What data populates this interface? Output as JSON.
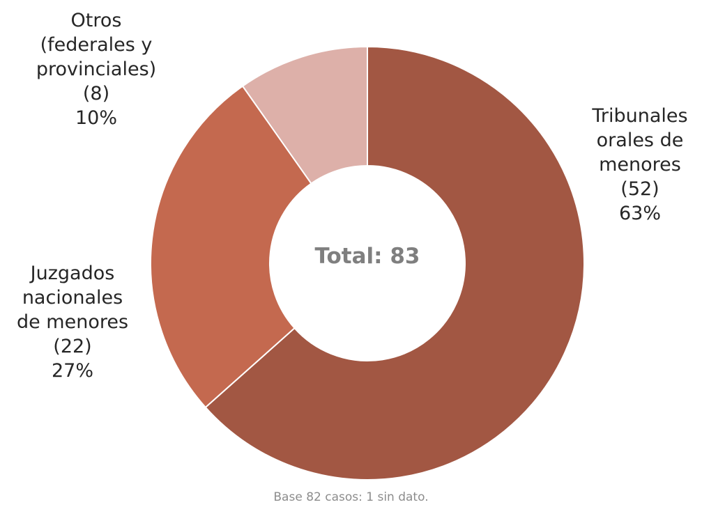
{
  "chart_data": {
    "type": "pie",
    "variant": "donut",
    "center_label": "Total: 83",
    "slices": [
      {
        "label_lines": [
          "Tribunales",
          "orales de",
          "menores"
        ],
        "count_text": "(52)",
        "percent_text": "63%",
        "value": 52,
        "color": "#a25743"
      },
      {
        "label_lines": [
          "Juzgados",
          "nacionales",
          "de menores"
        ],
        "count_text": "(22)",
        "percent_text": "27%",
        "value": 22,
        "color": "#c4694f"
      },
      {
        "label_lines": [
          "Otros",
          "(federales y",
          "provinciales)"
        ],
        "count_text": "(8)",
        "percent_text": "10%",
        "value": 8,
        "color": "#ddb0a9"
      }
    ],
    "start_angle_deg": 0,
    "direction": "clockwise",
    "legend": "none",
    "footnote": "Base 82 casos: 1 sin dato."
  }
}
